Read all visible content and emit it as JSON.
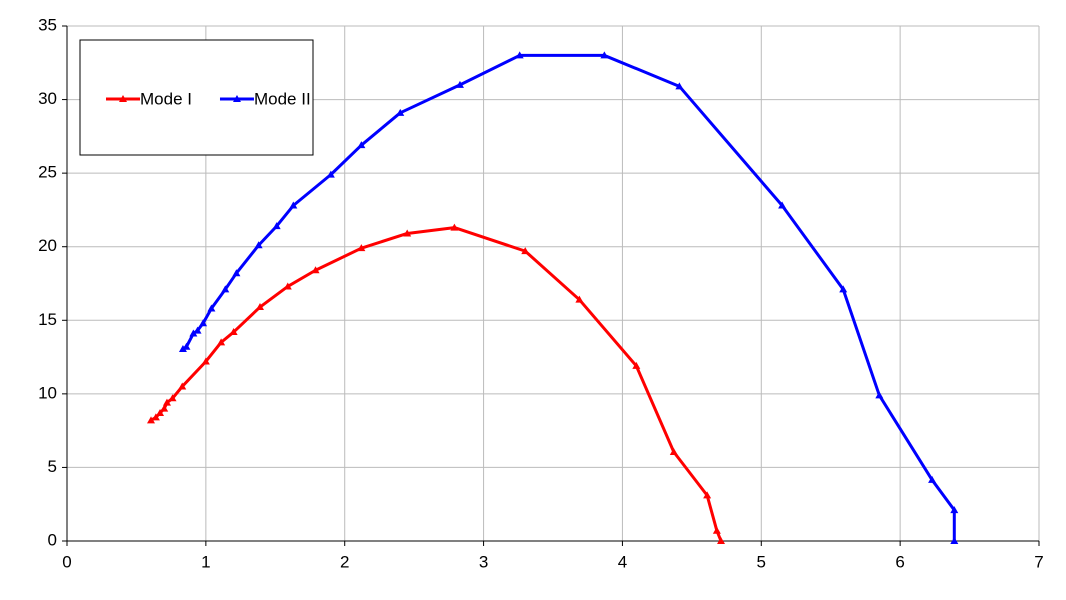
{
  "chart_data": {
    "type": "line",
    "xlim": [
      0,
      7
    ],
    "xticks": [
      0,
      1,
      2,
      3,
      4,
      5,
      6,
      7
    ],
    "ylim": [
      0,
      35
    ],
    "yticks": [
      0,
      5,
      10,
      15,
      20,
      25,
      30,
      35
    ],
    "grid": true,
    "legend": "top-left",
    "series": [
      {
        "name": "Mode I",
        "color": "#ff0000",
        "x": [
          0.605,
          0.64,
          0.67,
          0.7,
          0.72,
          0.76,
          0.83,
          1.0,
          1.11,
          1.2,
          1.39,
          1.59,
          1.79,
          2.12,
          2.45,
          2.79,
          3.3,
          3.69,
          4.1,
          4.37,
          4.61,
          4.68,
          4.71
        ],
        "values": [
          8.2,
          8.4,
          8.7,
          9.0,
          9.4,
          9.7,
          10.5,
          12.2,
          13.5,
          14.2,
          15.9,
          17.3,
          18.4,
          19.9,
          20.9,
          21.3,
          19.7,
          16.4,
          11.9,
          6.05,
          3.1,
          0.7,
          0
        ]
      },
      {
        "name": "Mode II",
        "color": "#0000ff",
        "x": [
          0.835,
          0.86,
          0.91,
          0.94,
          0.98,
          1.04,
          1.14,
          1.22,
          1.38,
          1.51,
          1.63,
          1.9,
          2.12,
          2.4,
          2.83,
          3.26,
          3.87,
          4.41,
          5.15,
          5.59,
          5.85,
          6.23,
          6.39,
          6.39
        ],
        "values": [
          13.05,
          13.2,
          14.1,
          14.3,
          14.8,
          15.8,
          17.1,
          18.2,
          20.1,
          21.4,
          22.8,
          24.9,
          26.9,
          29.1,
          31.0,
          33.0,
          33.0,
          30.9,
          22.8,
          17.1,
          9.9,
          4.15,
          2.1,
          0
        ]
      }
    ]
  }
}
